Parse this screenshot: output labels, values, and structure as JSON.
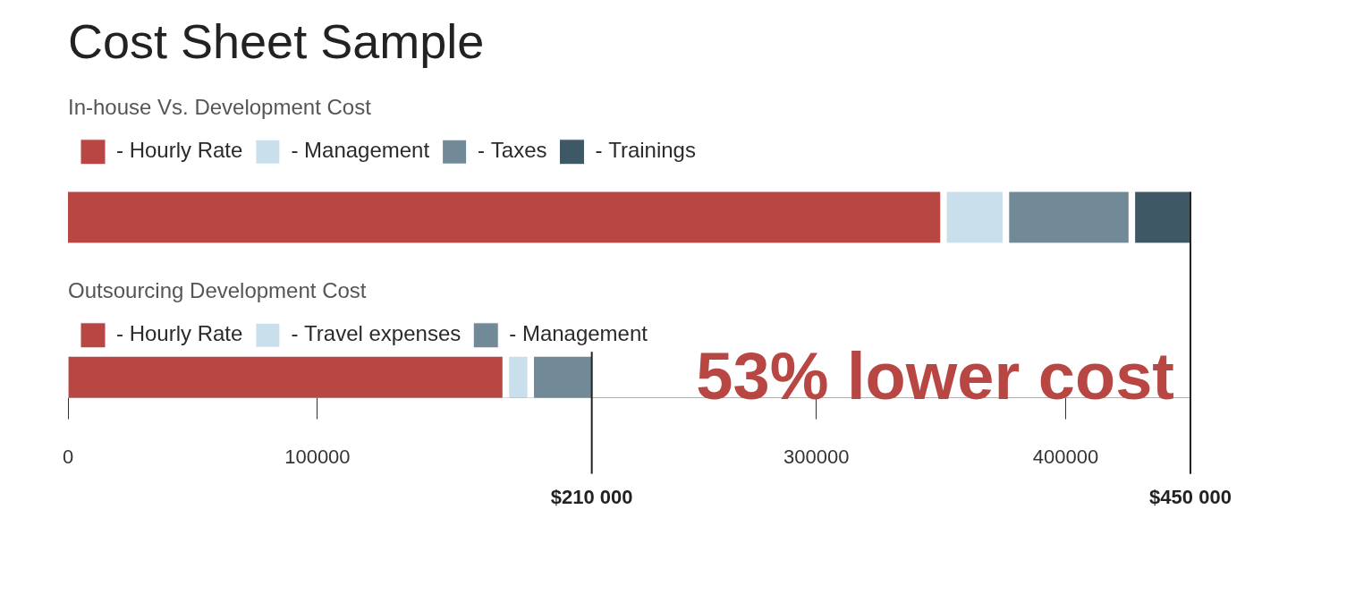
{
  "chart_data": [
    {
      "type": "bar",
      "orientation": "horizontal",
      "stacked": true,
      "title": "Cost Sheet Sample",
      "subtitle": "In-house Vs. Development Cost",
      "categories": [
        null
      ],
      "series": [
        {
          "name": "- Hourly Rate",
          "color": "#b84744",
          "values": [
            351000
          ]
        },
        {
          "name": "- Management",
          "color": "#c9e0ec",
          "values": [
            25000
          ]
        },
        {
          "name": "- Taxes",
          "color": "#728a97",
          "values": [
            50500
          ]
        },
        {
          "name": "- Trainings",
          "color": "#3e5865",
          "values": [
            23500
          ]
        }
      ],
      "xlim": [
        0,
        450000
      ],
      "tick_labels": false,
      "grid": false,
      "legend": "top left"
    },
    {
      "type": "bar",
      "orientation": "horizontal",
      "stacked": true,
      "subtitle": "Outsourcing Development Cost",
      "categories": [
        null
      ],
      "series": [
        {
          "name": "- Hourly Rate",
          "color": "#b84744",
          "values": [
            175500
          ]
        },
        {
          "name": "- Travel expenses",
          "color": "#c9e0ec",
          "values": [
            10000
          ]
        },
        {
          "name": "- Management",
          "color": "#728a97",
          "values": [
            24500
          ]
        }
      ],
      "xlim": [
        0,
        450000
      ],
      "xticks": [
        0,
        100000,
        300000,
        400000
      ],
      "grid": false,
      "legend": "top left",
      "annotations": [
        {
          "x": 210000,
          "text": "$210 000"
        },
        {
          "x": 450000,
          "text": "$450 000"
        },
        {
          "text": "53% lower cost"
        }
      ]
    }
  ]
}
